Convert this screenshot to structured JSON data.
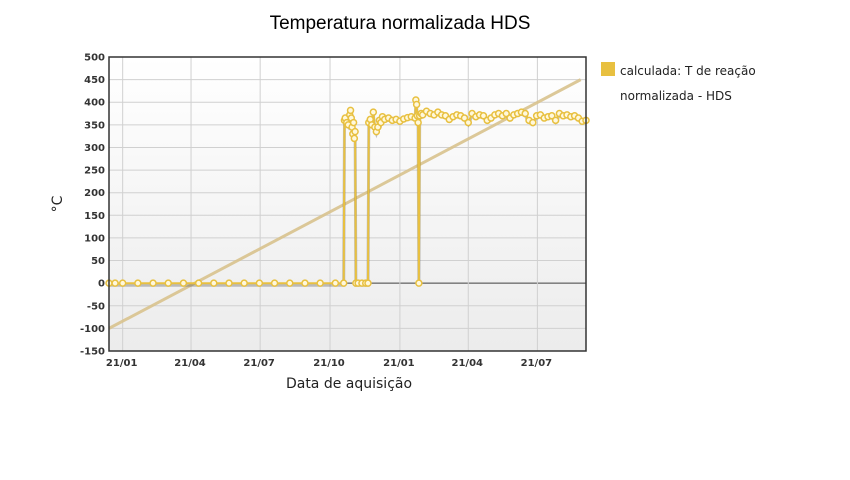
{
  "chart_data": {
    "type": "line",
    "title": "Temperatura normalizada HDS",
    "xlabel": "Data de aquisição",
    "ylabel": "°C",
    "x_ticks": [
      "21/01",
      "21/04",
      "21/07",
      "21/10",
      "21/01",
      "21/04",
      "21/07"
    ],
    "x_tick_positions_days": [
      0,
      90,
      181,
      273,
      365,
      455,
      546
    ],
    "x_range_days": [
      -18,
      610
    ],
    "y_ticks": [
      -150,
      -100,
      -50,
      0,
      50,
      100,
      150,
      200,
      250,
      300,
      350,
      400,
      450,
      500
    ],
    "ylim": [
      -150,
      500
    ],
    "grid": true,
    "legend_placement": "right-top",
    "series_color": "#e8c040",
    "trend_color": "#d9c38e",
    "series": [
      {
        "name": "calculada: T de reação normalizada - HDS",
        "points": [
          [
            -18,
            0
          ],
          [
            -10,
            0
          ],
          [
            0,
            0
          ],
          [
            20,
            0
          ],
          [
            40,
            0
          ],
          [
            60,
            0
          ],
          [
            80,
            0
          ],
          [
            100,
            0
          ],
          [
            120,
            0
          ],
          [
            140,
            0
          ],
          [
            160,
            0
          ],
          [
            180,
            0
          ],
          [
            200,
            0
          ],
          [
            220,
            0
          ],
          [
            240,
            0
          ],
          [
            260,
            0
          ],
          [
            280,
            0
          ],
          [
            291,
            0
          ],
          [
            292,
            360
          ],
          [
            293,
            365
          ],
          [
            295,
            355
          ],
          [
            297,
            350
          ],
          [
            299,
            372
          ],
          [
            300,
            382
          ],
          [
            301,
            365
          ],
          [
            302,
            345
          ],
          [
            303,
            330
          ],
          [
            304,
            355
          ],
          [
            305,
            320
          ],
          [
            306,
            335
          ],
          [
            307,
            0
          ],
          [
            310,
            0
          ],
          [
            315,
            0
          ],
          [
            320,
            0
          ],
          [
            323,
            0
          ],
          [
            324,
            355
          ],
          [
            326,
            362
          ],
          [
            328,
            350
          ],
          [
            330,
            378
          ],
          [
            332,
            345
          ],
          [
            334,
            335
          ],
          [
            336,
            345
          ],
          [
            338,
            360
          ],
          [
            340,
            355
          ],
          [
            342,
            368
          ],
          [
            345,
            362
          ],
          [
            350,
            365
          ],
          [
            355,
            360
          ],
          [
            360,
            362
          ],
          [
            365,
            358
          ],
          [
            370,
            363
          ],
          [
            375,
            366
          ],
          [
            380,
            368
          ],
          [
            385,
            365
          ],
          [
            386,
            405
          ],
          [
            387,
            395
          ],
          [
            388,
            370
          ],
          [
            389,
            355
          ],
          [
            390,
            0
          ],
          [
            391,
            370
          ],
          [
            393,
            375
          ],
          [
            395,
            372
          ],
          [
            400,
            380
          ],
          [
            405,
            375
          ],
          [
            410,
            372
          ],
          [
            415,
            378
          ],
          [
            420,
            372
          ],
          [
            425,
            370
          ],
          [
            430,
            362
          ],
          [
            435,
            368
          ],
          [
            440,
            372
          ],
          [
            445,
            370
          ],
          [
            450,
            365
          ],
          [
            455,
            355
          ],
          [
            460,
            375
          ],
          [
            465,
            368
          ],
          [
            470,
            372
          ],
          [
            475,
            370
          ],
          [
            480,
            360
          ],
          [
            485,
            365
          ],
          [
            490,
            372
          ],
          [
            495,
            375
          ],
          [
            500,
            370
          ],
          [
            505,
            375
          ],
          [
            510,
            365
          ],
          [
            515,
            372
          ],
          [
            520,
            375
          ],
          [
            525,
            378
          ],
          [
            530,
            375
          ],
          [
            535,
            360
          ],
          [
            540,
            355
          ],
          [
            545,
            370
          ],
          [
            550,
            372
          ],
          [
            555,
            365
          ],
          [
            560,
            368
          ],
          [
            565,
            370
          ],
          [
            570,
            360
          ],
          [
            575,
            375
          ],
          [
            580,
            370
          ],
          [
            585,
            372
          ],
          [
            590,
            368
          ],
          [
            595,
            370
          ],
          [
            600,
            365
          ],
          [
            605,
            358
          ],
          [
            610,
            360
          ]
        ]
      }
    ],
    "trend_line": [
      [
        -18,
        -100
      ],
      [
        603,
        450
      ]
    ]
  }
}
